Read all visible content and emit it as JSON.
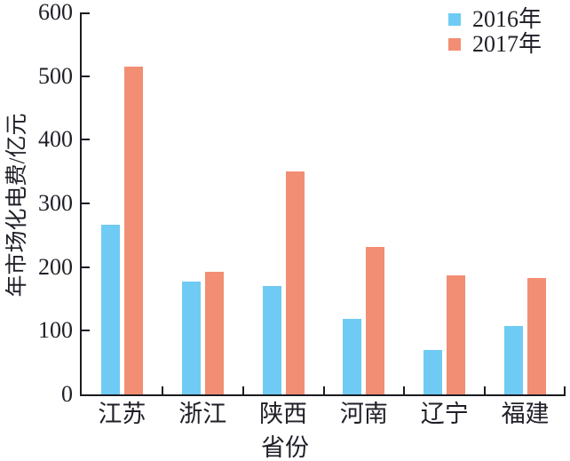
{
  "chart_data": {
    "type": "bar",
    "title": "",
    "categories": [
      "江苏",
      "浙江",
      "陕西",
      "河南",
      "辽宁",
      "福建"
    ],
    "series": [
      {
        "name": "2016年",
        "color": "#6FCBF3",
        "values": [
          266,
          177,
          170,
          118,
          70,
          107
        ]
      },
      {
        "name": "2017年",
        "color": "#F28E73",
        "values": [
          515,
          193,
          350,
          232,
          187,
          183
        ]
      }
    ],
    "xlabel": "省份",
    "ylabel": "年市场化电费/亿元",
    "ylim": [
      0,
      600
    ],
    "yticks": [
      0,
      100,
      200,
      300,
      400,
      500,
      600
    ],
    "legend_position": "top-right",
    "grid": false,
    "axis_color": "#1b1b22",
    "text_color": "#1f1f28",
    "background_color": "#ffffff"
  }
}
